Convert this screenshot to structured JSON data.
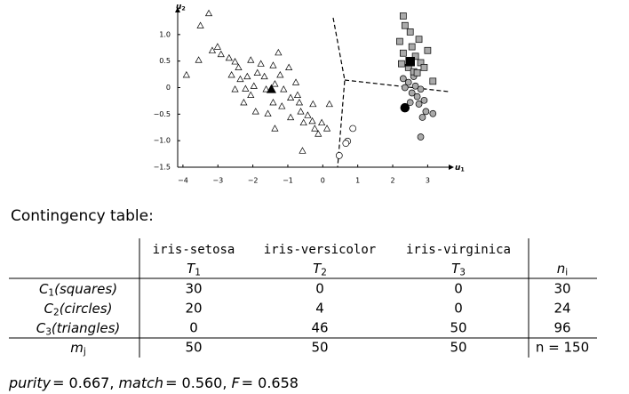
{
  "chart_data": {
    "type": "scatter",
    "x_label": {
      "symbol": "u",
      "index": "1"
    },
    "y_label": {
      "symbol": "u",
      "index": "2"
    },
    "xlim": [
      -4.15,
      3.6
    ],
    "ylim": [
      -1.5,
      1.45
    ],
    "xticks": [
      {
        "value": -4,
        "label": "−4"
      },
      {
        "value": -3,
        "label": "−3"
      },
      {
        "value": -2,
        "label": "−2"
      },
      {
        "value": -1,
        "label": "−1"
      },
      0,
      1,
      2,
      3
    ],
    "yticks": [
      {
        "value": -1.5,
        "label": "−1.5"
      },
      {
        "value": -1,
        "label": "−1.0"
      },
      {
        "value": -0.5,
        "label": "−0.5"
      },
      0,
      0.5,
      {
        "value": 1,
        "label": "1.0"
      }
    ],
    "series": [
      {
        "marker": "triangle",
        "color": "#ffffff",
        "x": [
          -3.26,
          -3.5,
          -3.9,
          -3.55,
          -3.16,
          -3.01,
          -2.91,
          -2.68,
          -2.61,
          -2.51,
          -2.41,
          -2.36,
          -2.21,
          -2.16,
          -2.06,
          -1.97,
          -1.87,
          -1.77,
          -1.67,
          -1.62,
          -1.42,
          -1.37,
          -1.27,
          -1.22,
          -1.12,
          -0.97,
          -0.92,
          -0.77,
          -0.67,
          -0.63,
          -0.55,
          -0.43,
          -0.3,
          -0.23,
          -0.13,
          -0.03,
          0.12,
          0.19,
          -0.58,
          -2.51,
          -2.26,
          -1.92,
          -1.57,
          -1.37,
          -1.17,
          -0.92,
          -0.72,
          -0.28,
          -2.06,
          -1.42
        ],
        "values": [
          1.4,
          1.17,
          0.24,
          0.52,
          0.7,
          0.77,
          0.63,
          0.56,
          0.24,
          0.49,
          0.38,
          0.16,
          -0.02,
          0.21,
          0.52,
          0.03,
          0.28,
          0.45,
          0.21,
          -0.03,
          0.42,
          0.07,
          0.66,
          0.24,
          -0.03,
          0.38,
          -0.19,
          0.1,
          -0.28,
          -0.45,
          -0.66,
          -0.52,
          -0.63,
          -0.77,
          -0.87,
          -0.66,
          -0.77,
          -0.31,
          -1.19,
          -0.03,
          -0.28,
          -0.45,
          -0.49,
          -0.77,
          -0.35,
          -0.56,
          -0.14,
          -0.31,
          -0.14,
          -0.28
        ]
      },
      {
        "marker": "circle",
        "color": "#ffffff",
        "x": [
          0.86,
          0.71,
          0.66,
          0.47
        ],
        "values": [
          -0.77,
          -1.01,
          -1.05,
          -1.28
        ]
      },
      {
        "marker": "circle",
        "color": "#aaaaaa",
        "x": [
          2.3,
          2.35,
          2.45,
          2.55,
          2.65,
          2.7,
          2.75,
          2.8,
          2.9,
          2.95,
          2.85,
          3.15,
          2.5,
          2.6,
          2.8
        ],
        "values": [
          0.17,
          0,
          0.1,
          -0.1,
          0.03,
          -0.17,
          -0.31,
          -0.03,
          -0.24,
          -0.45,
          -0.56,
          -0.49,
          -0.28,
          0.21,
          -0.93
        ]
      },
      {
        "marker": "square",
        "color": "#aaaaaa",
        "x": [
          2.3,
          2.35,
          2.2,
          2.5,
          2.55,
          2.3,
          2.65,
          2.75,
          2.8,
          2.9,
          2.45,
          3,
          3.15,
          2.6,
          2.25,
          2.7
        ],
        "values": [
          1.35,
          1.17,
          0.87,
          1.05,
          0.77,
          0.65,
          0.59,
          0.91,
          0.47,
          0.38,
          0.38,
          0.7,
          0.12,
          0.3,
          0.45,
          0.28
        ]
      },
      {
        "marker": "triangle",
        "color": "#000000",
        "x": [
          -1.47
        ],
        "values": [
          -0.03
        ]
      },
      {
        "marker": "circle",
        "color": "#000000",
        "x": [
          2.35
        ],
        "values": [
          -0.38
        ]
      },
      {
        "marker": "square",
        "color": "#000000",
        "x": [
          2.5
        ],
        "values": [
          0.49
        ]
      }
    ]
  },
  "caption": "Contingency table:",
  "table": {
    "columns": [
      {
        "name": "iris-setosa",
        "symbol": "T",
        "index": "1"
      },
      {
        "name": "iris-versicolor",
        "symbol": "T",
        "index": "2"
      },
      {
        "name": "iris-virginica",
        "symbol": "T",
        "index": "3"
      }
    ],
    "total_header": {
      "symbol": "n",
      "index": "i"
    },
    "rows": [
      {
        "symbol": "C",
        "index": "1",
        "note": "(squares)",
        "cells": [
          "30",
          "0",
          "0"
        ],
        "total": "30"
      },
      {
        "symbol": "C",
        "index": "2",
        "note": "(circles)",
        "cells": [
          "20",
          "4",
          "0"
        ],
        "total": "24"
      },
      {
        "symbol": "C",
        "index": "3",
        "note": "(triangles)",
        "cells": [
          "0",
          "46",
          "50"
        ],
        "total": "96"
      }
    ],
    "footer": {
      "symbol": "m",
      "index": "j",
      "cells": [
        "50",
        "50",
        "50"
      ],
      "total": "n = 150"
    }
  },
  "summary": {
    "separator": ",",
    "items": [
      {
        "name": "purity",
        "value": "= 0.667"
      },
      {
        "name": "match",
        "value": "= 0.560"
      },
      {
        "name": "F",
        "value": "= 0.658"
      }
    ]
  }
}
